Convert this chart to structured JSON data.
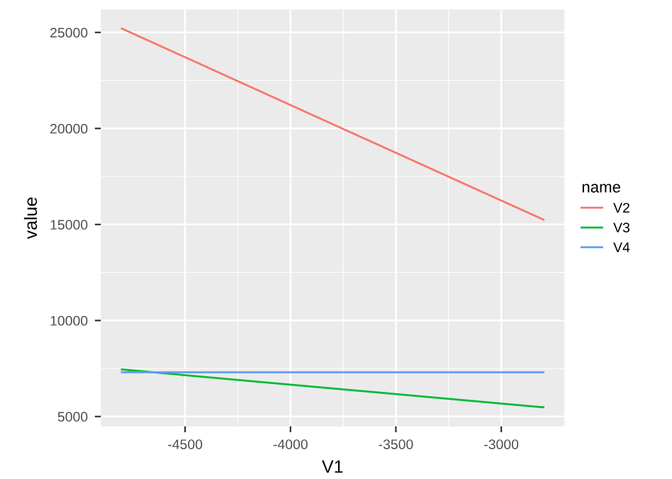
{
  "chart_data": {
    "type": "line",
    "xlabel": "V1",
    "ylabel": "value",
    "legend_title": "name",
    "legend": "right",
    "grid": true,
    "x": [
      -4800,
      -2800
    ],
    "xlim": [
      -4900,
      -2700
    ],
    "xticks": [
      -4500,
      -4000,
      -3500,
      -3000
    ],
    "ylim": [
      4490,
      26190
    ],
    "yticks": [
      5000,
      10000,
      15000,
      20000,
      25000
    ],
    "series": [
      {
        "name": "V2",
        "color": "#f8766d",
        "values": [
          25200,
          15250
        ]
      },
      {
        "name": "V3",
        "color": "#00ba38",
        "values": [
          7450,
          5480
        ]
      },
      {
        "name": "V4",
        "color": "#619cff",
        "values": [
          7300,
          7300
        ]
      }
    ]
  }
}
